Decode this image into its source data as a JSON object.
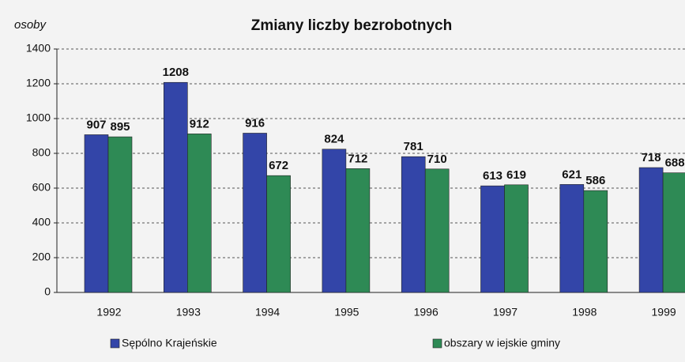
{
  "chart_data": {
    "type": "bar",
    "title": "Zmiany liczby bezrobotnych",
    "y_label": "osoby",
    "categories": [
      "1992",
      "1993",
      "1994",
      "1995",
      "1996",
      "1997",
      "1998",
      "1999"
    ],
    "series": [
      {
        "name": "Sępólno Krajeńskie",
        "color": "#3345a8",
        "values": [
          907,
          1208,
          916,
          824,
          781,
          613,
          621,
          718
        ]
      },
      {
        "name": "obszary w iejskie gminy",
        "color": "#2e8a55",
        "values": [
          895,
          912,
          672,
          712,
          710,
          619,
          586,
          688
        ]
      }
    ],
    "ylim": [
      0,
      1400
    ],
    "yticks": [
      0,
      200,
      400,
      600,
      800,
      1000,
      1200,
      1400
    ],
    "grid": true
  }
}
